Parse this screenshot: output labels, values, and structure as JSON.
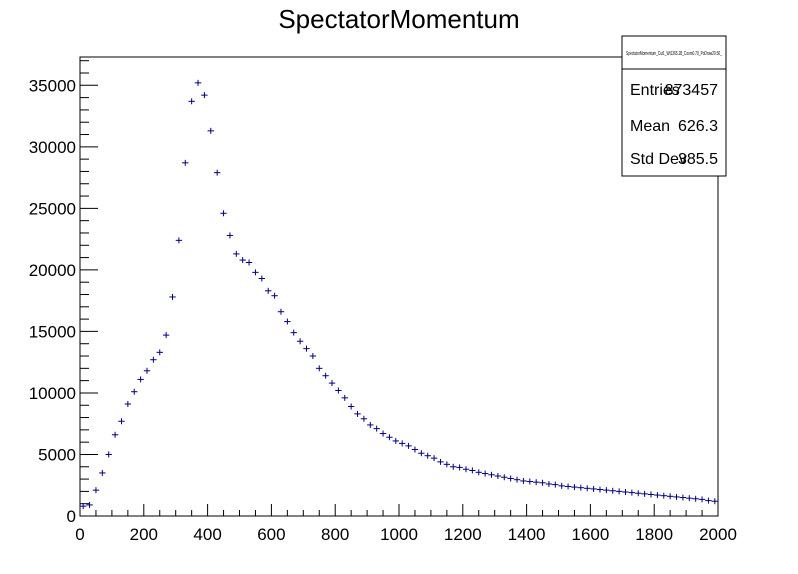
{
  "chart_data": {
    "type": "scatter",
    "title": "SpectatorMomentum",
    "xlabel": "",
    "ylabel": "",
    "xlim": [
      0,
      2000
    ],
    "ylim": [
      0,
      37300
    ],
    "x_ticks": [
      0,
      200,
      400,
      600,
      800,
      1000,
      1200,
      1400,
      1600,
      1800,
      2000
    ],
    "y_ticks": [
      0,
      5000,
      10000,
      15000,
      20000,
      25000,
      30000,
      35000
    ],
    "bin_width": 20,
    "marker_color": "#000080",
    "grid": false,
    "series": [
      {
        "x": [
          10,
          30,
          50,
          70,
          90,
          110,
          130,
          150,
          170,
          190,
          210,
          230,
          250,
          270,
          290,
          310,
          330,
          350,
          370,
          390,
          410,
          430,
          450,
          470,
          490,
          510,
          530,
          550,
          570,
          590,
          610,
          630,
          650,
          670,
          690,
          710,
          730,
          750,
          770,
          790,
          810,
          830,
          850,
          870,
          890,
          910,
          930,
          950,
          970,
          990,
          1010,
          1030,
          1050,
          1070,
          1090,
          1110,
          1130,
          1150,
          1170,
          1190,
          1210,
          1230,
          1250,
          1270,
          1290,
          1310,
          1330,
          1350,
          1370,
          1390,
          1410,
          1430,
          1450,
          1470,
          1490,
          1510,
          1530,
          1550,
          1570,
          1590,
          1610,
          1630,
          1650,
          1670,
          1690,
          1710,
          1730,
          1750,
          1770,
          1790,
          1810,
          1830,
          1850,
          1870,
          1890,
          1910,
          1930,
          1950,
          1970,
          1990
        ],
        "y": [
          800,
          900,
          2100,
          3500,
          5000,
          6600,
          7700,
          9100,
          10100,
          11100,
          11800,
          12700,
          13300,
          14700,
          17800,
          22400,
          28700,
          33700,
          35200,
          34200,
          31300,
          27900,
          24600,
          22800,
          21300,
          20800,
          20600,
          19800,
          19300,
          18300,
          17900,
          16600,
          15800,
          14900,
          14200,
          13600,
          13000,
          12000,
          11400,
          10800,
          10200,
          9600,
          8900,
          8300,
          7900,
          7400,
          7100,
          6700,
          6400,
          6100,
          5900,
          5700,
          5400,
          5100,
          4900,
          4700,
          4400,
          4200,
          4000,
          3950,
          3800,
          3700,
          3550,
          3450,
          3350,
          3250,
          3150,
          3050,
          2950,
          2850,
          2800,
          2750,
          2700,
          2600,
          2550,
          2450,
          2400,
          2350,
          2300,
          2250,
          2200,
          2150,
          2100,
          2050,
          2000,
          1950,
          1900,
          1850,
          1800,
          1750,
          1700,
          1650,
          1600,
          1550,
          1500,
          1450,
          1400,
          1350,
          1250,
          1200
        ]
      }
    ]
  },
  "stats_box": {
    "name": "SpectatorMomentum_Cut1_Wt1365.28_Cosm0.70_PoDraw20.50_",
    "rows": [
      {
        "label": "Entries",
        "value": "873457"
      },
      {
        "label": "Mean",
        "value": "626.3"
      },
      {
        "label": "Std Dev",
        "value": "385.5"
      }
    ]
  }
}
